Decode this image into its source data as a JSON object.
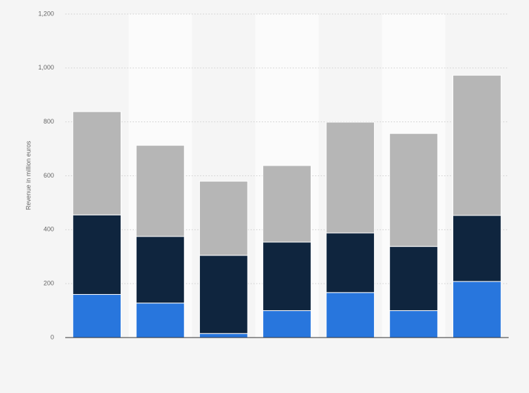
{
  "chart_data": {
    "type": "stacked-bar",
    "y_label": "Revenue in million euros",
    "categories": [
      null,
      null,
      null,
      null,
      null,
      null,
      null
    ],
    "series": [
      {
        "color": "#2876dd",
        "values": [
          160,
          128,
          15,
          100,
          167,
          100,
          208
        ]
      },
      {
        "color": "#0f253e",
        "values": [
          295,
          247,
          290,
          254,
          221,
          238,
          245
        ]
      },
      {
        "color": "#b6b6b6",
        "values": [
          383,
          338,
          275,
          284,
          411,
          419,
          520
        ]
      }
    ],
    "ylim": [
      0,
      1200
    ],
    "yticks": [
      0,
      200,
      400,
      600,
      800,
      {
        "value": 1000,
        "label": "1,000"
      },
      {
        "value": 1200,
        "label": "1,200"
      }
    ],
    "grid": true
  }
}
